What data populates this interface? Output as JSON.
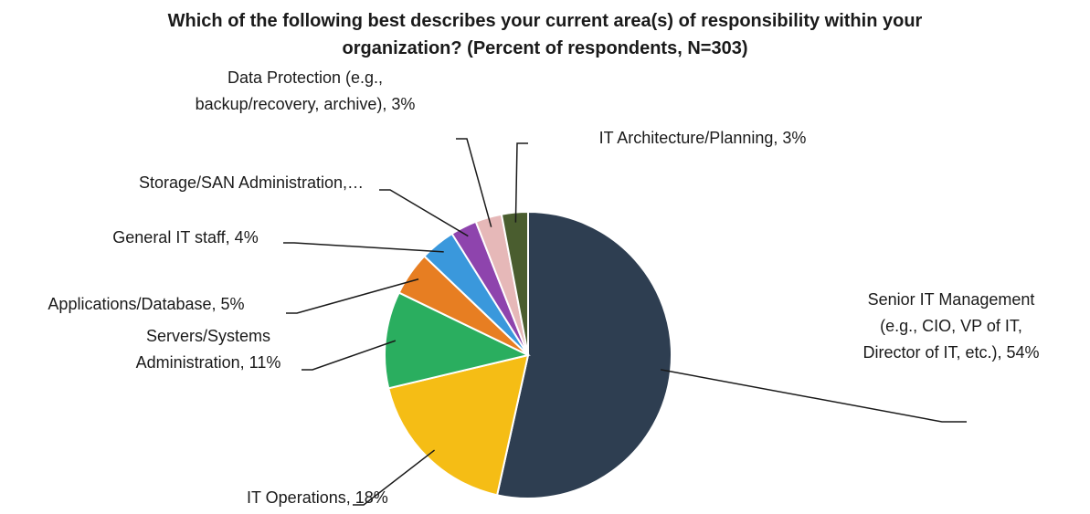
{
  "chart_data": {
    "type": "pie",
    "title_line1": "Which of the following best describes your current area(s) of responsibility within your",
    "title_line2": "organization? (Percent of respondents, N=303)",
    "start_angle_deg": 0,
    "direction": "clockwise",
    "slices": [
      {
        "name": "Senior IT Management (e.g., CIO, VP of IT, Director of IT, etc.)",
        "value": 54,
        "color": "#2e3e51",
        "label_lines": [
          "Senior IT Management",
          "(e.g., CIO, VP of IT,",
          "Director of IT, etc.), 54%"
        ]
      },
      {
        "name": "IT Operations",
        "value": 18,
        "color": "#f5bd15",
        "label_lines": [
          "IT Operations, 18%"
        ]
      },
      {
        "name": "Servers/Systems Administration",
        "value": 11,
        "color": "#2aae5f",
        "label_lines": [
          "Servers/Systems",
          "Administration, 11%"
        ]
      },
      {
        "name": "Applications/Database",
        "value": 5,
        "color": "#e77e22",
        "label_lines": [
          "Applications/Database, 5%"
        ]
      },
      {
        "name": "General IT staff",
        "value": 4,
        "color": "#3a98dc",
        "label_lines": [
          "General IT staff, 4%"
        ]
      },
      {
        "name": "Storage/SAN Administration",
        "value": 3,
        "color": "#8e44ad",
        "label_lines": [
          "Storage/SAN Administration,…"
        ]
      },
      {
        "name": "Data Protection (e.g., backup/recovery, archive)",
        "value": 3,
        "color": "#e6b8b8",
        "label_lines": [
          "Data Protection (e.g.,",
          "backup/recovery, archive), 3%"
        ]
      },
      {
        "name": "IT Architecture/Planning",
        "value": 3,
        "color": "#4a5d2f",
        "label_lines": [
          "IT Architecture/Planning, 3%"
        ]
      }
    ]
  }
}
